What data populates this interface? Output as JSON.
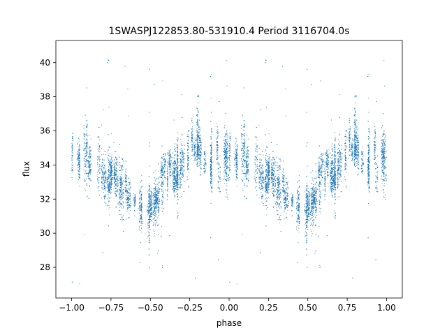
{
  "chart_data": {
    "type": "scatter",
    "title": "1SWASPJ122853.80-531910.4 Period 3116704.0s",
    "xlabel": "phase",
    "ylabel": "flux",
    "xlim": [
      -1.1,
      1.1
    ],
    "ylim": [
      26.2,
      41.3
    ],
    "xticks": [
      -1.0,
      -0.75,
      -0.5,
      -0.25,
      0.0,
      0.25,
      0.5,
      0.75,
      1.0
    ],
    "xtick_labels": [
      "−1.00",
      "−0.75",
      "−0.50",
      "−0.25",
      "0.00",
      "0.25",
      "0.50",
      "0.75",
      "1.00"
    ],
    "yticks": [
      28,
      30,
      32,
      34,
      36,
      38,
      40
    ],
    "ytick_labels": [
      "28",
      "30",
      "32",
      "34",
      "36",
      "38",
      "40"
    ],
    "grid": false,
    "series_color": "#1f77b4",
    "phase_curve": {
      "description_phase_range": [
        0.0,
        1.0
      ],
      "mean_flux_points": [
        [
          0.0,
          34.6
        ],
        [
          0.05,
          34.4
        ],
        [
          0.1,
          34.2
        ],
        [
          0.15,
          33.8
        ],
        [
          0.2,
          33.4
        ],
        [
          0.25,
          33.2
        ],
        [
          0.3,
          32.9
        ],
        [
          0.35,
          32.4
        ],
        [
          0.4,
          32.0
        ],
        [
          0.45,
          31.5
        ],
        [
          0.5,
          31.6
        ],
        [
          0.55,
          32.3
        ],
        [
          0.6,
          33.4
        ],
        [
          0.65,
          33.1
        ],
        [
          0.7,
          33.7
        ],
        [
          0.75,
          34.6
        ],
        [
          0.8,
          35.3
        ],
        [
          0.85,
          34.9
        ],
        [
          0.9,
          34.5
        ],
        [
          0.95,
          34.4
        ],
        [
          1.0,
          34.6
        ]
      ],
      "scatter_spread": 1.2,
      "outlier_range": [
        27.0,
        40.5
      ]
    }
  }
}
